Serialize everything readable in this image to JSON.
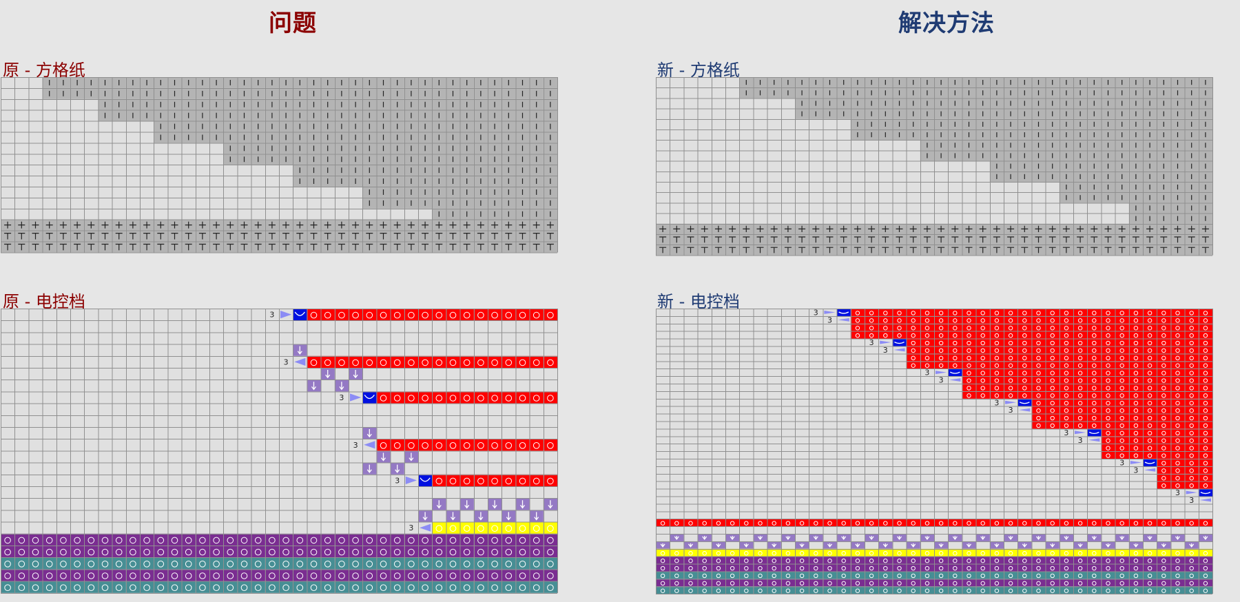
{
  "problem": {
    "title": "问题",
    "chart_label": "原 - 方格纸",
    "control_label": "原 - 电控档"
  },
  "solution": {
    "title": "解决方法",
    "chart_label": "新 - 方格纸",
    "control_label": "新 - 电控档"
  },
  "cell_labels": {
    "rack_count": "3"
  },
  "colors": {
    "problem_title": "#8b0000",
    "solution_title": "#1f3b73",
    "grid_bg": "#e0e0e0",
    "grid_line": "#8f8f8f",
    "worked_cell": "#b4b4b4",
    "transfer_red": "#ff0000",
    "rack_blue": "#0010e0",
    "rack_arrow": "#8c8cf5",
    "drop_purple": "#9479c4",
    "yarn_yellow": "#ffff00",
    "yarn_purple": "#7a2d91",
    "yarn_teal": "#468e94"
  }
}
